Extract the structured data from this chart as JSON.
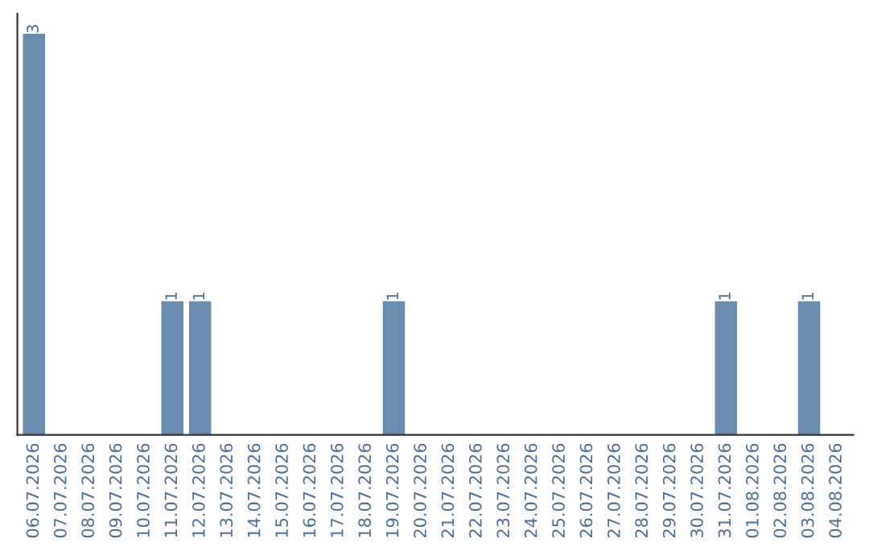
{
  "chart_data": {
    "type": "bar",
    "categories": [
      "06.07.2026",
      "07.07.2026",
      "08.07.2026",
      "09.07.2026",
      "10.07.2026",
      "11.07.2026",
      "12.07.2026",
      "13.07.2026",
      "14.07.2026",
      "15.07.2026",
      "16.07.2026",
      "17.07.2026",
      "18.07.2026",
      "19.07.2026",
      "20.07.2026",
      "21.07.2026",
      "22.07.2026",
      "23.07.2026",
      "24.07.2026",
      "25.07.2026",
      "26.07.2026",
      "27.07.2026",
      "28.07.2026",
      "29.07.2026",
      "30.07.2026",
      "31.07.2026",
      "01.08.2026",
      "02.08.2026",
      "03.08.2026",
      "04.08.2026"
    ],
    "values": [
      3,
      0,
      0,
      0,
      0,
      1,
      1,
      0,
      0,
      0,
      0,
      0,
      0,
      1,
      0,
      0,
      0,
      0,
      0,
      0,
      0,
      0,
      0,
      0,
      0,
      1,
      0,
      0,
      1,
      0
    ],
    "value_labels": [
      "3",
      null,
      null,
      null,
      null,
      "1",
      "1",
      null,
      null,
      null,
      null,
      null,
      null,
      "1",
      null,
      null,
      null,
      null,
      null,
      null,
      null,
      null,
      null,
      null,
      null,
      "1",
      null,
      null,
      "1",
      null
    ],
    "color": "#6a8caf",
    "tick_labels": "x",
    "grid": false
  }
}
